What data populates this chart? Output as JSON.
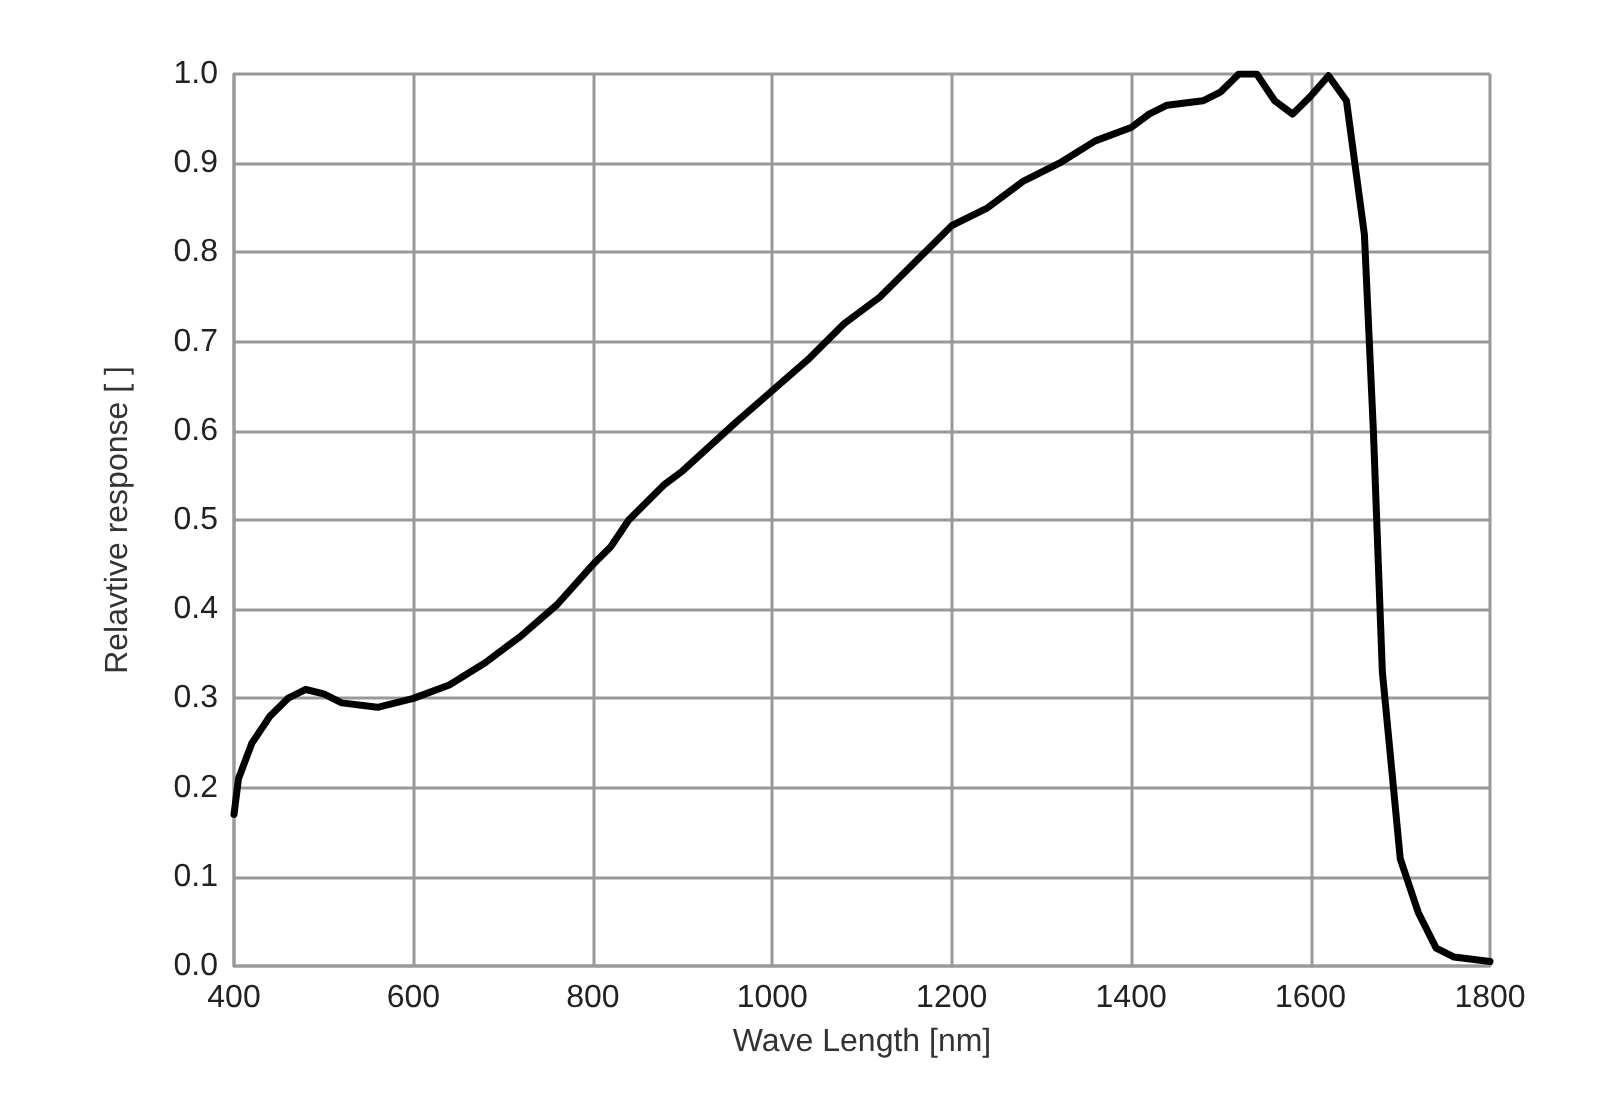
{
  "chart_data": {
    "type": "line",
    "xlabel": "Wave Length [nm]",
    "ylabel": "Relavtive response [ ]",
    "xlim": [
      400,
      1800
    ],
    "xticks": [
      400,
      600,
      800,
      1000,
      1200,
      1400,
      1600,
      1800
    ],
    "ylim": [
      0,
      1
    ],
    "yticks": [
      {
        "value": 0,
        "label": "0.0"
      },
      0.1,
      0.2,
      0.3,
      0.4,
      0.5,
      0.6,
      0.7,
      0.8,
      0.9,
      {
        "value": 1,
        "label": "1.0"
      }
    ],
    "grid": true,
    "marker": "none",
    "line_style": "solid",
    "series": [
      {
        "color": "#000000",
        "x": [
          400,
          405,
          420,
          440,
          460,
          480,
          500,
          520,
          560,
          600,
          640,
          680,
          720,
          760,
          800,
          820,
          840,
          880,
          900,
          960,
          1000,
          1040,
          1080,
          1120,
          1160,
          1200,
          1240,
          1280,
          1320,
          1360,
          1400,
          1420,
          1440,
          1480,
          1500,
          1520,
          1540,
          1560,
          1580,
          1600,
          1620,
          1640,
          1660,
          1670,
          1680,
          1700,
          1720,
          1740,
          1760,
          1800
        ],
        "values": [
          0.17,
          0.21,
          0.25,
          0.28,
          0.3,
          0.31,
          0.305,
          0.295,
          0.29,
          0.3,
          0.315,
          0.34,
          0.37,
          0.405,
          0.45,
          0.47,
          0.5,
          0.54,
          0.555,
          0.61,
          0.645,
          0.68,
          0.72,
          0.75,
          0.79,
          0.83,
          0.85,
          0.88,
          0.9,
          0.925,
          0.94,
          0.955,
          0.965,
          0.97,
          0.98,
          1.0,
          1.0,
          0.97,
          0.955,
          0.975,
          0.998,
          0.97,
          0.82,
          0.6,
          0.33,
          0.12,
          0.06,
          0.02,
          0.01,
          0.005
        ]
      }
    ]
  }
}
